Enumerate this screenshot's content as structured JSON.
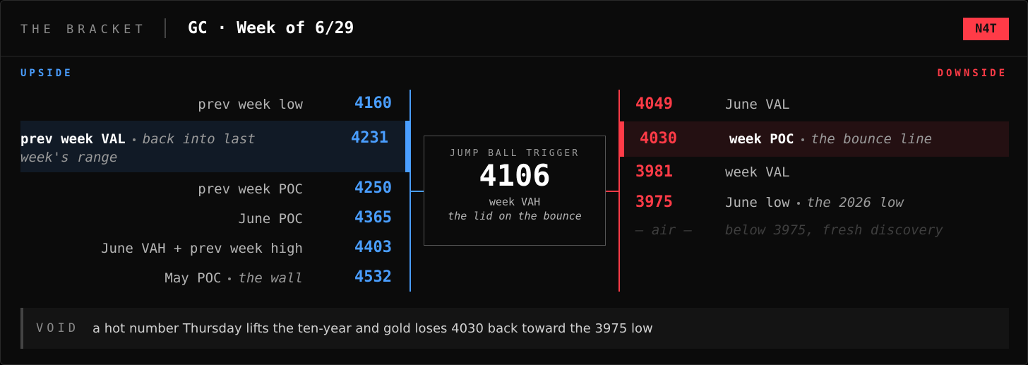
{
  "header": {
    "kicker": "THE BRACKET",
    "title": "GC · Week of 6/29",
    "badge": "N4T"
  },
  "upside": {
    "heading": "UPSIDE",
    "levels": [
      {
        "label": "prev week low",
        "value": "4160"
      },
      {
        "label": "prev week VAL",
        "note": "back into last week's range",
        "value": "4231",
        "highlight": true
      },
      {
        "label": "prev week POC",
        "value": "4250"
      },
      {
        "label": "June POC",
        "value": "4365"
      },
      {
        "label": "June VAH + prev week high",
        "value": "4403"
      },
      {
        "label": "May POC",
        "note": "the wall",
        "value": "4532"
      }
    ]
  },
  "downside": {
    "heading": "DOWNSIDE",
    "levels": [
      {
        "value": "4049",
        "label": "June VAL"
      },
      {
        "value": "4030",
        "label": "week POC",
        "note": "the bounce line",
        "highlight": true
      },
      {
        "value": "3981",
        "label": "week VAL"
      },
      {
        "value": "3975",
        "label": "June low",
        "note": "the 2026 low"
      },
      {
        "value": "— air —",
        "note": "below 3975, fresh discovery",
        "dim": true
      }
    ]
  },
  "trigger": {
    "heading": "JUMP BALL TRIGGER",
    "value": "4106",
    "label": "week VAH",
    "note": "the lid on the bounce"
  },
  "void": {
    "label": "VOID",
    "text": "a hot number Thursday lifts the ten-year and gold loses 4030 back toward the 3975 low"
  }
}
